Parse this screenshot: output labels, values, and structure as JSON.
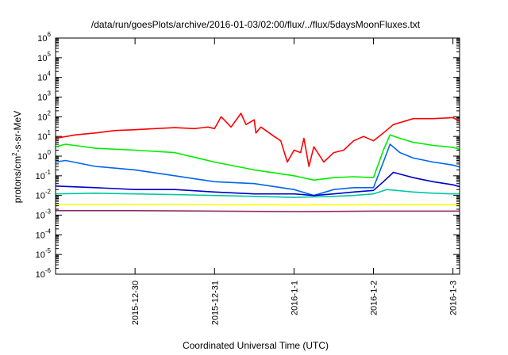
{
  "chart_data": {
    "type": "line",
    "title": "/data/run/goesPlots/archive/2016-01-03/02:00/flux/../flux/5daysMoonFluxes.txt",
    "xlabel": "Coordinated Universal Time (UTC)",
    "ylabel_parts": [
      "protons/cm",
      "2",
      "-s-sr-MeV"
    ],
    "yscale": "log",
    "xlim": [
      "2015-12-29T00:00",
      "2016-01-03T02:00"
    ],
    "ylim": [
      1e-06,
      1000000.0
    ],
    "y_ticks": [
      {
        "base": "10",
        "exp": "-6",
        "value": 1e-06
      },
      {
        "base": "10",
        "exp": "-5",
        "value": 1e-05
      },
      {
        "base": "10",
        "exp": "-4",
        "value": 0.0001
      },
      {
        "base": "10",
        "exp": "-3",
        "value": 0.001
      },
      {
        "base": "10",
        "exp": "-2",
        "value": 0.01
      },
      {
        "base": "10",
        "exp": "-1",
        "value": 0.1
      },
      {
        "base": "10",
        "exp": "0",
        "value": 1
      },
      {
        "base": "10",
        "exp": "1",
        "value": 10
      },
      {
        "base": "10",
        "exp": "2",
        "value": 100
      },
      {
        "base": "10",
        "exp": "3",
        "value": 1000
      },
      {
        "base": "10",
        "exp": "4",
        "value": 10000
      },
      {
        "base": "10",
        "exp": "5",
        "value": 100000
      },
      {
        "base": "10",
        "exp": "6",
        "value": 1000000
      }
    ],
    "x_ticks": [
      {
        "label": "2015-12-30",
        "value": "2015-12-30T00:00"
      },
      {
        "label": "2015-12-31",
        "value": "2015-12-31T00:00"
      },
      {
        "label": "2016-1-1",
        "value": "2016-01-01T00:00"
      },
      {
        "label": "2016-1-2",
        "value": "2016-01-02T00:00"
      },
      {
        "label": "2016-1-3",
        "value": "2016-01-03T00:00"
      }
    ],
    "series": [
      {
        "color": "#ff0000",
        "x": [
          "2015-12-29T00:00",
          "2015-12-29T06:00",
          "2015-12-29T12:00",
          "2015-12-29T18:00",
          "2015-12-30T00:00",
          "2015-12-30T06:00",
          "2015-12-30T12:00",
          "2015-12-30T18:00",
          "2015-12-30T22:00",
          "2015-12-31T00:00",
          "2015-12-31T02:00",
          "2015-12-31T05:00",
          "2015-12-31T08:00",
          "2015-12-31T09:30",
          "2015-12-31T12:00",
          "2015-12-31T12:30",
          "2015-12-31T14:00",
          "2015-12-31T18:00",
          "2015-12-31T20:00",
          "2015-12-31T22:00",
          "2016-01-01T00:00",
          "2016-01-01T02:00",
          "2016-01-01T03:00",
          "2016-01-01T04:30",
          "2016-01-01T06:00",
          "2016-01-01T09:00",
          "2016-01-01T12:00",
          "2016-01-01T15:00",
          "2016-01-01T18:00",
          "2016-01-01T21:00",
          "2016-01-02T00:00",
          "2016-01-02T03:00",
          "2016-01-02T06:00",
          "2016-01-02T12:00",
          "2016-01-02T18:00",
          "2016-01-03T00:00",
          "2016-01-03T02:00"
        ],
        "y": [
          8,
          12,
          15,
          20,
          22,
          25,
          28,
          25,
          30,
          25,
          100,
          30,
          150,
          40,
          70,
          15,
          30,
          10,
          6,
          0.5,
          2,
          1.5,
          8,
          0.3,
          3,
          0.5,
          1.5,
          2,
          6,
          10,
          6,
          15,
          40,
          80,
          80,
          90,
          60
        ]
      },
      {
        "color": "#00ee00",
        "x": [
          "2015-12-29T00:00",
          "2015-12-29T03:00",
          "2015-12-29T12:00",
          "2015-12-30T00:00",
          "2015-12-30T12:00",
          "2015-12-31T00:00",
          "2015-12-31T12:00",
          "2016-01-01T00:00",
          "2016-01-01T06:00",
          "2016-01-01T12:00",
          "2016-01-01T18:00",
          "2016-01-02T00:00",
          "2016-01-02T03:00",
          "2016-01-02T05:00",
          "2016-01-02T08:00",
          "2016-01-02T12:00",
          "2016-01-02T18:00",
          "2016-01-03T00:00",
          "2016-01-03T02:00"
        ],
        "y": [
          3,
          4,
          2.5,
          2,
          1.5,
          0.5,
          0.2,
          0.1,
          0.06,
          0.08,
          0.09,
          0.08,
          2,
          12,
          8,
          5,
          3.5,
          2.8,
          2.2
        ]
      },
      {
        "color": "#0066ee",
        "x": [
          "2015-12-29T00:00",
          "2015-12-29T03:00",
          "2015-12-29T12:00",
          "2015-12-30T00:00",
          "2015-12-30T12:00",
          "2015-12-31T00:00",
          "2015-12-31T12:00",
          "2016-01-01T00:00",
          "2016-01-01T06:00",
          "2016-01-01T12:00",
          "2016-01-01T18:00",
          "2016-01-02T00:00",
          "2016-01-02T03:00",
          "2016-01-02T05:00",
          "2016-01-02T08:00",
          "2016-01-02T12:00",
          "2016-01-02T18:00",
          "2016-01-03T00:00",
          "2016-01-03T02:00"
        ],
        "y": [
          0.5,
          0.6,
          0.3,
          0.2,
          0.1,
          0.05,
          0.04,
          0.02,
          0.01,
          0.02,
          0.025,
          0.025,
          0.5,
          4,
          1.5,
          0.8,
          0.5,
          0.35,
          0.28
        ]
      },
      {
        "color": "#0000cc",
        "x": [
          "2015-12-29T00:00",
          "2015-12-29T12:00",
          "2015-12-30T00:00",
          "2015-12-30T12:00",
          "2015-12-31T00:00",
          "2015-12-31T12:00",
          "2016-01-01T00:00",
          "2016-01-01T06:00",
          "2016-01-01T12:00",
          "2016-01-01T18:00",
          "2016-01-02T00:00",
          "2016-01-02T03:00",
          "2016-01-02T06:00",
          "2016-01-02T12:00",
          "2016-01-02T18:00",
          "2016-01-03T00:00",
          "2016-01-03T02:00"
        ],
        "y": [
          0.03,
          0.025,
          0.02,
          0.02,
          0.015,
          0.012,
          0.012,
          0.01,
          0.012,
          0.015,
          0.018,
          0.05,
          0.15,
          0.08,
          0.05,
          0.035,
          0.028
        ]
      },
      {
        "color": "#00c8a0",
        "x": [
          "2015-12-29T00:00",
          "2015-12-29T12:00",
          "2015-12-30T00:00",
          "2015-12-30T12:00",
          "2015-12-31T00:00",
          "2015-12-31T12:00",
          "2016-01-01T00:00",
          "2016-01-01T12:00",
          "2016-01-01T18:00",
          "2016-01-02T00:00",
          "2016-01-02T04:00",
          "2016-01-02T12:00",
          "2016-01-02T18:00",
          "2016-01-03T00:00",
          "2016-01-03T02:00"
        ],
        "y": [
          0.012,
          0.013,
          0.012,
          0.011,
          0.01,
          0.009,
          0.008,
          0.009,
          0.01,
          0.012,
          0.02,
          0.015,
          0.013,
          0.012,
          0.012
        ]
      },
      {
        "color": "#ffff00",
        "x": [
          "2015-12-29T00:00",
          "2015-12-30T00:00",
          "2015-12-31T00:00",
          "2016-01-01T00:00",
          "2016-01-02T00:00",
          "2016-01-03T02:00"
        ],
        "y": [
          0.0035,
          0.0035,
          0.0034,
          0.0033,
          0.0034,
          0.0034
        ]
      },
      {
        "color": "#8b2a6e",
        "x": [
          "2015-12-29T00:00",
          "2015-12-30T00:00",
          "2015-12-31T00:00",
          "2016-01-01T00:00",
          "2016-01-02T00:00",
          "2016-01-03T02:00"
        ],
        "y": [
          0.0017,
          0.0017,
          0.0016,
          0.0015,
          0.0016,
          0.0016
        ]
      }
    ]
  }
}
